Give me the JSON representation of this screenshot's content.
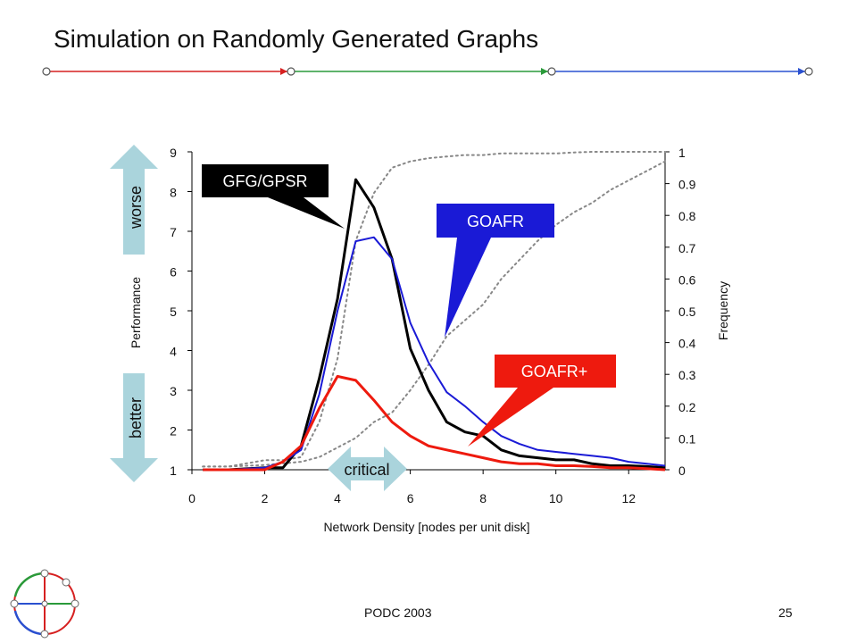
{
  "slide": {
    "title": "Simulation on Randomly Generated Graphs",
    "footer_left": "PODC 2003",
    "page_number": "25"
  },
  "colors": {
    "gfg": "#000000",
    "goafr": "#1a1ad6",
    "goafr_plus": "#ee1a0e",
    "frequency": "#888888",
    "arrow_fill": "#aad4dc",
    "divider_red": "#d62020",
    "divider_green": "#2a9a3a",
    "divider_blue": "#2a50d0"
  },
  "annotations": {
    "worse": "worse",
    "better": "better",
    "critical": "critical",
    "gfg_label": "GFG/GPSR",
    "goafr_label": "GOAFR",
    "goafr_plus_label": "GOAFR+"
  },
  "chart_data": {
    "type": "line",
    "xlabel": "Network Density [nodes per unit disk]",
    "ylabel": "Performance",
    "y2label": "Frequency",
    "xlim": [
      0,
      13
    ],
    "ylim": [
      1,
      9
    ],
    "y2lim": [
      0,
      1
    ],
    "xticks": [
      "0",
      "2",
      "4",
      "6",
      "8",
      "10",
      "12"
    ],
    "yticks": [
      "1",
      "2",
      "3",
      "4",
      "5",
      "6",
      "7",
      "8",
      "9"
    ],
    "y2ticks": [
      "0",
      "0.1",
      "0.2",
      "0.3",
      "0.4",
      "0.5",
      "0.6",
      "0.7",
      "0.8",
      "0.9",
      "1"
    ],
    "grid": false,
    "series": [
      {
        "name": "GFG/GPSR",
        "axis": "left",
        "x": [
          0.3,
          1,
          2,
          2.5,
          3,
          3.5,
          4,
          4.5,
          5,
          5.5,
          6,
          6.5,
          7,
          7.5,
          8,
          8.5,
          9,
          9.5,
          10,
          10.5,
          11,
          11.5,
          12,
          12.5,
          13
        ],
        "values": [
          1.0,
          1.0,
          1.05,
          1.05,
          1.6,
          3.3,
          5.3,
          8.3,
          7.6,
          6.3,
          4.05,
          3.0,
          2.2,
          1.95,
          1.85,
          1.5,
          1.35,
          1.3,
          1.25,
          1.25,
          1.15,
          1.1,
          1.1,
          1.08,
          1.05
        ]
      },
      {
        "name": "GOAFR",
        "axis": "left",
        "x": [
          0.3,
          1,
          2,
          2.5,
          3,
          3.5,
          4,
          4.5,
          5,
          5.5,
          6,
          6.5,
          7,
          7.5,
          8,
          8.5,
          9,
          9.5,
          10,
          10.5,
          11,
          11.5,
          12,
          12.5,
          13
        ],
        "values": [
          1.0,
          1.0,
          1.05,
          1.2,
          1.5,
          2.9,
          5.0,
          6.75,
          6.85,
          6.3,
          4.7,
          3.7,
          2.95,
          2.6,
          2.2,
          1.85,
          1.65,
          1.5,
          1.45,
          1.4,
          1.35,
          1.3,
          1.2,
          1.15,
          1.1
        ]
      },
      {
        "name": "GOAFR+",
        "axis": "left",
        "x": [
          0.3,
          1,
          2,
          2.5,
          3,
          3.5,
          4,
          4.5,
          5,
          5.5,
          6,
          6.5,
          7,
          7.5,
          8,
          8.5,
          9,
          9.5,
          10,
          10.5,
          11,
          11.5,
          12,
          12.5,
          13
        ],
        "values": [
          1.0,
          1.0,
          1.0,
          1.2,
          1.6,
          2.55,
          3.35,
          3.25,
          2.75,
          2.2,
          1.85,
          1.6,
          1.5,
          1.4,
          1.3,
          1.2,
          1.15,
          1.15,
          1.1,
          1.1,
          1.08,
          1.05,
          1.05,
          1.03,
          1.0
        ]
      },
      {
        "axis": "right",
        "style": "dotted",
        "x": [
          0.3,
          1,
          1.5,
          2,
          2.5,
          3,
          3.5,
          4,
          4.5,
          5,
          5.5,
          6,
          6.5,
          7,
          7.5,
          8,
          8.5,
          9,
          9.5,
          10,
          10.5,
          11,
          11.5,
          12,
          12.5,
          13
        ],
        "values": [
          0.01,
          0.01,
          0.02,
          0.03,
          0.03,
          0.04,
          0.15,
          0.35,
          0.72,
          0.87,
          0.95,
          0.97,
          0.98,
          0.985,
          0.99,
          0.99,
          0.995,
          0.995,
          0.995,
          0.995,
          0.998,
          1.0,
          1.0,
          1.0,
          1.0,
          1.0
        ]
      },
      {
        "axis": "right",
        "style": "dotted",
        "x": [
          0.3,
          1,
          2,
          2.5,
          3,
          3.5,
          4,
          4.5,
          5,
          5.5,
          6,
          6.5,
          7,
          7.5,
          8,
          8.5,
          9,
          9.5,
          10,
          10.5,
          11,
          11.5,
          12,
          12.5,
          13
        ],
        "values": [
          0.01,
          0.01,
          0.015,
          0.02,
          0.025,
          0.04,
          0.07,
          0.1,
          0.15,
          0.18,
          0.25,
          0.33,
          0.42,
          0.47,
          0.52,
          0.6,
          0.66,
          0.72,
          0.77,
          0.81,
          0.84,
          0.88,
          0.91,
          0.94,
          0.97
        ]
      }
    ]
  }
}
